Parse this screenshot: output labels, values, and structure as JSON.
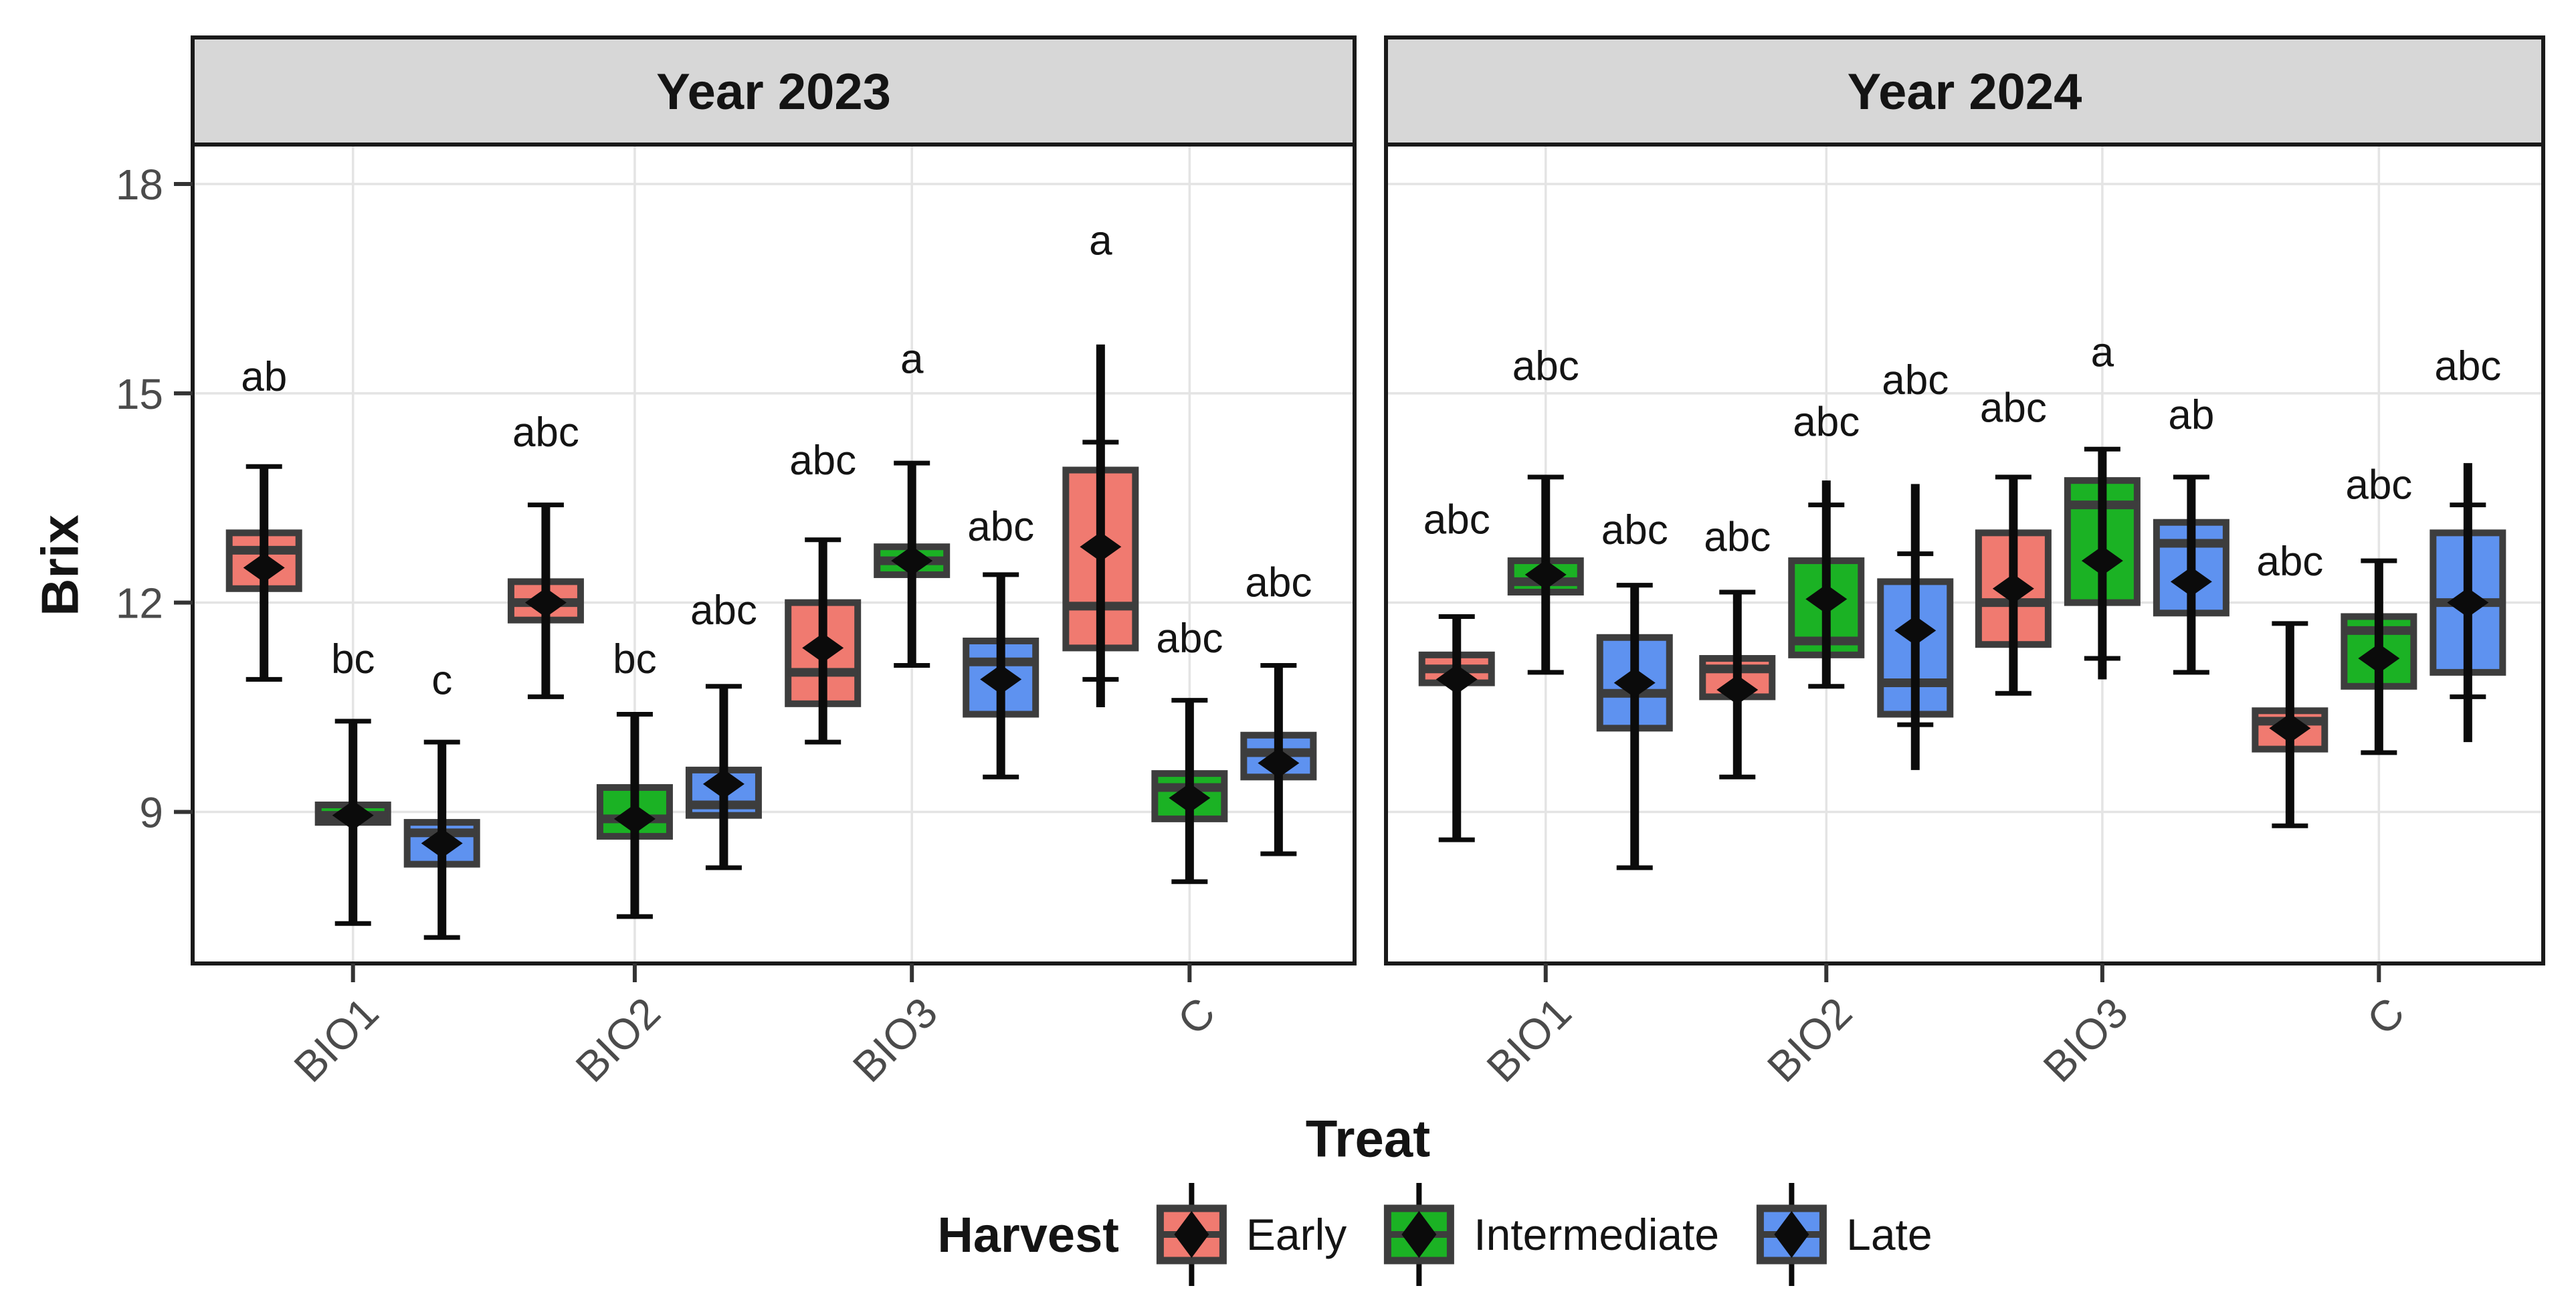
{
  "figure": {
    "kind": "faceted grouped boxplot"
  },
  "y_axis": {
    "title": "Brix",
    "ticks": [
      18,
      15,
      12,
      9
    ]
  },
  "x_axis": {
    "title": "Treat",
    "categories": [
      "BIO1",
      "BIO2",
      "BIO3",
      "C"
    ]
  },
  "legend": {
    "title": "Harvest",
    "items": [
      {
        "label": "Early",
        "color": "#F07A70"
      },
      {
        "label": "Intermediate",
        "color": "#1BB224"
      },
      {
        "label": "Late",
        "color": "#5E92F0"
      }
    ]
  },
  "colors": {
    "box_border": "#3D3D3D",
    "whisker": "#0B0B0B",
    "diamond": "#0B0B0B",
    "gridline": "#E4E4E4",
    "strip_bg": "#D7D7D7",
    "panel_border": "#1A1A1A",
    "axis_text": "#4B4B4B",
    "sig_text": "#141414"
  },
  "chart_data": {
    "type": "boxplot",
    "title": "",
    "xlabel": "Treat",
    "ylabel": "Brix",
    "y_ticks": [
      18,
      15,
      12,
      9
    ],
    "ylim_shown": [
      6.8,
      18.6
    ],
    "grid": "major-only",
    "legend_position": "bottom",
    "categories": [
      "BIO1",
      "BIO2",
      "BIO3",
      "C"
    ],
    "series_names": [
      "Early",
      "Intermediate",
      "Late"
    ],
    "facets": [
      {
        "title": "Year 2023",
        "groups": [
          {
            "treat": "BIO1",
            "boxes": [
              {
                "harvest": "Early",
                "whisker_low": 10.9,
                "q1": 12.2,
                "median": 12.75,
                "q3": 13.0,
                "whisker_high": 13.95,
                "mean": 12.5,
                "sig": "ab",
                "sig_y": 15.25
              },
              {
                "harvest": "Intermediate",
                "whisker_low": 7.4,
                "q1": 8.85,
                "median": 8.95,
                "q3": 9.1,
                "whisker_high": 10.3,
                "mean": 8.95,
                "sig": "bc",
                "sig_y": 11.2
              },
              {
                "harvest": "Late",
                "whisker_low": 7.2,
                "q1": 8.25,
                "median": 8.7,
                "q3": 8.85,
                "whisker_high": 10.0,
                "mean": 8.55,
                "sig": "c",
                "sig_y": 10.9
              }
            ]
          },
          {
            "treat": "BIO2",
            "boxes": [
              {
                "harvest": "Early",
                "whisker_low": 10.65,
                "q1": 11.75,
                "median": 12.0,
                "q3": 12.3,
                "whisker_high": 13.4,
                "mean": 12.0,
                "sig": "abc",
                "sig_y": 14.45
              },
              {
                "harvest": "Intermediate",
                "whisker_low": 7.5,
                "q1": 8.65,
                "median": 8.9,
                "q3": 9.35,
                "whisker_high": 10.4,
                "mean": 8.9,
                "sig": "bc",
                "sig_y": 11.2
              },
              {
                "harvest": "Late",
                "whisker_low": 8.2,
                "q1": 8.95,
                "median": 9.1,
                "q3": 9.6,
                "whisker_high": 10.8,
                "mean": 9.4,
                "sig": "abc",
                "sig_y": 11.9
              }
            ]
          },
          {
            "treat": "BIO3",
            "boxes": [
              {
                "harvest": "Early",
                "whisker_low": 10.0,
                "q1": 10.55,
                "median": 11.0,
                "q3": 12.0,
                "whisker_high": 12.9,
                "mean": 11.35,
                "sig": "abc",
                "sig_y": 14.05
              },
              {
                "harvest": "Intermediate",
                "whisker_low": 11.1,
                "q1": 12.4,
                "median": 12.6,
                "q3": 12.8,
                "whisker_high": 14.0,
                "mean": 12.6,
                "sig": "a",
                "sig_y": 15.5
              },
              {
                "harvest": "Late",
                "whisker_low": 9.5,
                "q1": 10.4,
                "median": 11.15,
                "q3": 11.45,
                "whisker_high": 12.4,
                "mean": 10.9,
                "sig": "abc",
                "sig_y": 13.1
              }
            ]
          },
          {
            "treat": "C",
            "boxes": [
              {
                "harvest": "Early",
                "whisker_low": 10.9,
                "q1": 11.35,
                "median": 11.95,
                "q3": 13.9,
                "whisker_high": 14.3,
                "mean": 12.8,
                "sig": "a",
                "sig_y": 17.2,
                "line_high": 15.7,
                "line_low": 10.5
              },
              {
                "harvest": "Intermediate",
                "whisker_low": 8.0,
                "q1": 8.9,
                "median": 9.35,
                "q3": 9.55,
                "whisker_high": 10.6,
                "mean": 9.2,
                "sig": "abc",
                "sig_y": 11.5
              },
              {
                "harvest": "Late",
                "whisker_low": 8.4,
                "q1": 9.5,
                "median": 9.85,
                "q3": 10.1,
                "whisker_high": 11.1,
                "mean": 9.7,
                "sig": "abc",
                "sig_y": 12.3
              }
            ]
          }
        ]
      },
      {
        "title": "Year 2024",
        "groups": [
          {
            "treat": "BIO1",
            "boxes": [
              {
                "harvest": "Early",
                "whisker_low": 8.6,
                "q1": 10.85,
                "median": 11.05,
                "q3": 11.25,
                "whisker_high": 11.8,
                "mean": 10.9,
                "sig": "abc",
                "sig_y": 13.2
              },
              {
                "harvest": "Intermediate",
                "whisker_low": 11.0,
                "q1": 12.15,
                "median": 12.3,
                "q3": 12.6,
                "whisker_high": 13.8,
                "mean": 12.4,
                "sig": "abc",
                "sig_y": 15.4
              },
              {
                "harvest": "Late",
                "whisker_low": 8.2,
                "q1": 10.2,
                "median": 10.7,
                "q3": 11.5,
                "whisker_high": 12.25,
                "mean": 10.85,
                "sig": "abc",
                "sig_y": 13.05
              }
            ]
          },
          {
            "treat": "BIO2",
            "boxes": [
              {
                "harvest": "Early",
                "whisker_low": 9.5,
                "q1": 10.65,
                "median": 11.05,
                "q3": 11.2,
                "whisker_high": 12.15,
                "mean": 10.75,
                "sig": "abc",
                "sig_y": 12.95
              },
              {
                "harvest": "Intermediate",
                "whisker_low": 10.8,
                "q1": 11.25,
                "median": 11.45,
                "q3": 12.6,
                "whisker_high": 13.4,
                "mean": 12.05,
                "sig": "abc",
                "sig_y": 14.6,
                "line_high": 13.75
              },
              {
                "harvest": "Late",
                "whisker_low": 10.25,
                "q1": 10.4,
                "median": 10.85,
                "q3": 12.3,
                "whisker_high": 12.7,
                "mean": 11.6,
                "sig": "abc",
                "sig_y": 15.2,
                "line_high": 13.7,
                "line_low": 9.6
              }
            ]
          },
          {
            "treat": "BIO3",
            "boxes": [
              {
                "harvest": "Early",
                "whisker_low": 10.7,
                "q1": 11.4,
                "median": 12.0,
                "q3": 13.0,
                "whisker_high": 13.8,
                "mean": 12.2,
                "sig": "abc",
                "sig_y": 14.8
              },
              {
                "harvest": "Intermediate",
                "whisker_low": 11.2,
                "q1": 12.0,
                "median": 13.4,
                "q3": 13.75,
                "whisker_high": 14.2,
                "mean": 12.6,
                "sig": "a",
                "sig_y": 15.6,
                "line_low": 10.9
              },
              {
                "harvest": "Late",
                "whisker_low": 11.0,
                "q1": 11.85,
                "median": 12.85,
                "q3": 13.15,
                "whisker_high": 13.8,
                "mean": 12.3,
                "sig": "ab",
                "sig_y": 14.7
              }
            ]
          },
          {
            "treat": "C",
            "boxes": [
              {
                "harvest": "Early",
                "whisker_low": 8.8,
                "q1": 9.9,
                "median": 10.3,
                "q3": 10.45,
                "whisker_high": 11.7,
                "mean": 10.2,
                "sig": "abc",
                "sig_y": 12.6
              },
              {
                "harvest": "Intermediate",
                "whisker_low": 9.85,
                "q1": 10.8,
                "median": 11.6,
                "q3": 11.8,
                "whisker_high": 12.6,
                "mean": 11.2,
                "sig": "abc",
                "sig_y": 13.7
              },
              {
                "harvest": "Late",
                "whisker_low": 10.65,
                "q1": 11.0,
                "median": 12.0,
                "q3": 13.0,
                "whisker_high": 13.4,
                "mean": 12.0,
                "sig": "abc",
                "sig_y": 15.4,
                "line_high": 14.0,
                "line_low": 10.0
              }
            ]
          }
        ]
      }
    ]
  }
}
